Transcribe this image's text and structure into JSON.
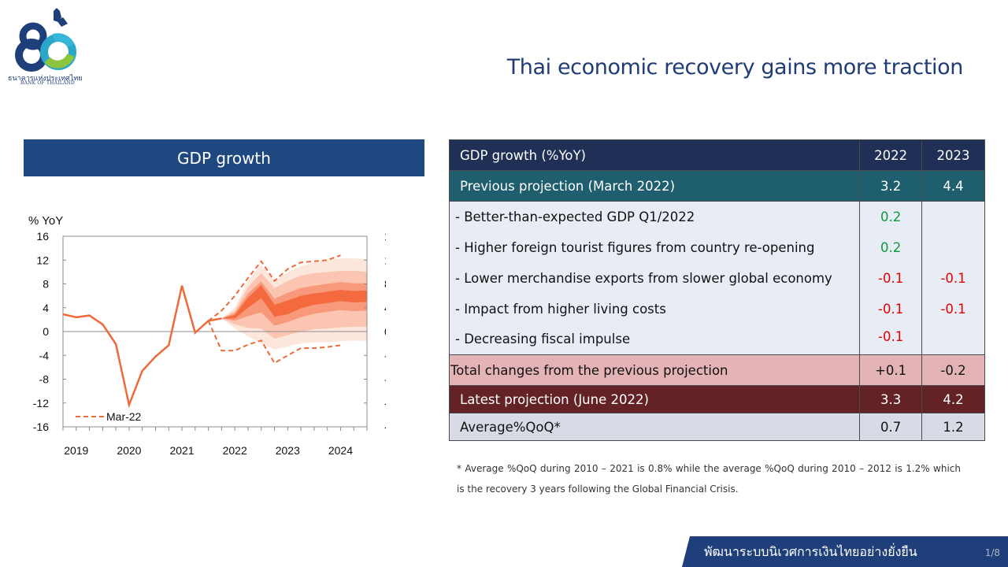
{
  "logo": {
    "thai_name": "ธนาคารแห่งประเทศไทย",
    "english_name": "BANK OF THAILAND"
  },
  "title": "Thai economic recovery gains more traction",
  "chart_panel": {
    "header": "GDP growth"
  },
  "chart_data": {
    "type": "line",
    "title": "",
    "ylabel": "% YoY",
    "ylim": [
      -16,
      16
    ],
    "yticks": [
      -16,
      -12,
      -8,
      -4,
      0,
      4,
      8,
      12,
      16
    ],
    "x_ticks": [
      {
        "label": "2019",
        "x": 2019.25
      },
      {
        "label": "2020",
        "x": 2020.25
      },
      {
        "label": "2021",
        "x": 2021.25
      },
      {
        "label": "2022",
        "x": 2022.25
      },
      {
        "label": "2023",
        "x": 2023.25
      },
      {
        "label": "2024",
        "x": 2024.25
      }
    ],
    "xlim": [
      2019,
      2024.75
    ],
    "grid": false,
    "series": [
      {
        "style": "solid",
        "color": "#ee6a3a",
        "points": [
          [
            2019.0,
            2.9
          ],
          [
            2019.25,
            2.4
          ],
          [
            2019.5,
            2.7
          ],
          [
            2019.75,
            1.2
          ],
          [
            2020.0,
            -2.1
          ],
          [
            2020.25,
            -12.3
          ],
          [
            2020.5,
            -6.6
          ],
          [
            2020.75,
            -4.2
          ],
          [
            2021.0,
            -2.3
          ],
          [
            2021.25,
            7.7
          ],
          [
            2021.5,
            -0.2
          ],
          [
            2021.75,
            1.8
          ],
          [
            2022.0,
            2.2
          ]
        ]
      },
      {
        "name": "Mar-22",
        "style": "dashed",
        "color": "#ee6a3a",
        "upper": [
          [
            2021.75,
            1.8
          ],
          [
            2022.0,
            3.5
          ],
          [
            2022.25,
            6.0
          ],
          [
            2022.5,
            9.0
          ],
          [
            2022.75,
            11.8
          ],
          [
            2023.0,
            8.5
          ],
          [
            2023.25,
            10.5
          ],
          [
            2023.5,
            11.6
          ],
          [
            2023.75,
            11.8
          ],
          [
            2024.0,
            12.0
          ],
          [
            2024.25,
            12.8
          ]
        ],
        "lower": [
          [
            2021.75,
            1.8
          ],
          [
            2022.0,
            -3.2
          ],
          [
            2022.25,
            -3.2
          ],
          [
            2022.5,
            -2.2
          ],
          [
            2022.75,
            -1.5
          ],
          [
            2023.0,
            -5.3
          ],
          [
            2023.25,
            -4.0
          ],
          [
            2023.5,
            -2.8
          ],
          [
            2023.75,
            -2.8
          ],
          [
            2024.0,
            -2.6
          ],
          [
            2024.25,
            -2.3
          ]
        ]
      }
    ],
    "fan_chart": {
      "x": [
        2022.0,
        2022.25,
        2022.5,
        2022.75,
        2023.0,
        2023.25,
        2023.5,
        2023.75,
        2024.0,
        2024.25,
        2024.5,
        2024.75
      ],
      "median": [
        2.2,
        2.5,
        5.0,
        7.0,
        3.5,
        4.0,
        5.0,
        5.5,
        5.8,
        6.1,
        5.9,
        6.0
      ],
      "bands": [
        {
          "color": "#fde6dc",
          "upper": [
            2.2,
            4.0,
            8.5,
            11.2,
            8.5,
            10.0,
            11.0,
            11.6,
            12.0,
            12.3,
            12.3,
            12.1
          ],
          "lower": [
            2.2,
            0.5,
            -0.8,
            -2.0,
            -3.0,
            -2.5,
            -2.0,
            -1.8,
            -1.8,
            -1.6,
            -1.5,
            -1.6
          ]
        },
        {
          "color": "#fbc5b1",
          "upper": [
            2.2,
            3.5,
            7.5,
            9.8,
            7.3,
            8.5,
            9.4,
            9.8,
            10.0,
            10.2,
            10.2,
            10.0
          ],
          "lower": [
            2.2,
            1.2,
            0.6,
            0.5,
            -1.2,
            -0.6,
            0.0,
            0.4,
            0.5,
            0.7,
            0.8,
            0.8
          ]
        },
        {
          "color": "#f8997b",
          "upper": [
            2.2,
            3.1,
            6.4,
            8.4,
            5.5,
            6.5,
            7.3,
            7.7,
            8.0,
            8.3,
            8.1,
            8.1
          ],
          "lower": [
            2.2,
            1.8,
            2.6,
            3.2,
            1.0,
            1.6,
            2.4,
            3.0,
            3.3,
            3.6,
            3.4,
            3.5
          ]
        },
        {
          "color": "#f46a3e",
          "upper": [
            2.2,
            2.8,
            5.7,
            7.8,
            4.5,
            5.2,
            6.0,
            6.4,
            6.7,
            7.0,
            6.8,
            6.9
          ],
          "lower": [
            2.2,
            2.2,
            4.0,
            5.6,
            2.5,
            2.9,
            3.9,
            4.5,
            4.8,
            5.1,
            4.9,
            5.0
          ]
        }
      ]
    },
    "legend": {
      "label": "Mar-22",
      "position": "bottom-left"
    },
    "secondary_yaxis": true
  },
  "table": {
    "header": {
      "label": "GDP growth (%YoY)",
      "y1": "2022",
      "y2": "2023"
    },
    "previous": {
      "label": "Previous projection (March 2022)",
      "y1": "3.2",
      "y2": "4.4"
    },
    "items": [
      {
        "label": "- Better-than-expected GDP Q1/2022",
        "y1": "0.2",
        "y2": ""
      },
      {
        "label": "- Higher foreign tourist figures from country re-opening",
        "y1": "0.2",
        "y2": ""
      },
      {
        "label": "- Lower merchandise exports from slower global economy",
        "y1": "-0.1",
        "y2": "-0.1"
      },
      {
        "label": "- Impact from higher living costs",
        "y1": "-0.1",
        "y2": "-0.1"
      },
      {
        "label": "- Decreasing fiscal impulse",
        "y1": "-0.1",
        "y2": ""
      }
    ],
    "total": {
      "label": "Total changes from the previous projection",
      "y1": "+0.1",
      "y2": "-0.2"
    },
    "latest": {
      "label": "Latest projection (June 2022)",
      "y1": "3.3",
      "y2": "4.2"
    },
    "average": {
      "label": "Average%QoQ*",
      "y1": "0.7",
      "y2": "1.2"
    }
  },
  "footnote": "* Average %QoQ during 2010 – 2021 is 0.8% while the average %QoQ during 2010 – 2012 is 1.2% which is the recovery 3 years following the Global Financial Crisis.",
  "footer": {
    "text": "พัฒนาระบบนิเวศการเงินไทยอย่างยั่งยืน",
    "page": "1/8"
  },
  "colors": {
    "navy": "#1f3c78",
    "chart_line": "#ee6a3a",
    "positive": "#0a9a3c",
    "negative": "#e30000"
  }
}
